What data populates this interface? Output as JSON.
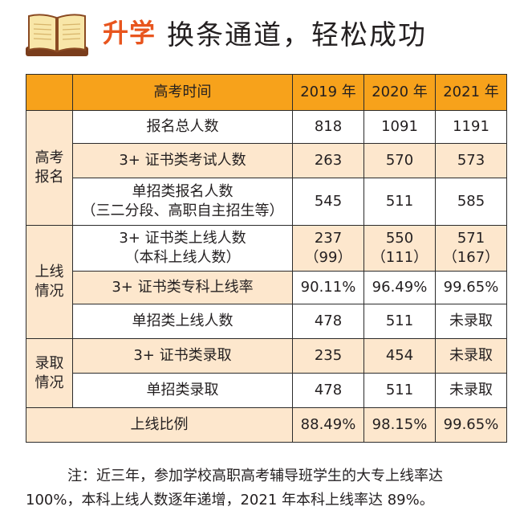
{
  "header": {
    "accent": "升学",
    "title": "换条通道，轻松成功"
  },
  "table": {
    "head": {
      "label": "高考时间",
      "years": [
        "2019 年",
        "2020 年",
        "2021 年"
      ]
    },
    "groups": {
      "g1": {
        "line1": "高考",
        "line2": "报名"
      },
      "g2": {
        "line1": "上线",
        "line2": "情况"
      },
      "g3": {
        "line1": "录取",
        "line2": "情况"
      }
    },
    "rows": [
      {
        "label": "报名总人数",
        "v": [
          "818",
          "1091",
          "1191"
        ]
      },
      {
        "label": "3+ 证书类考试人数",
        "v": [
          "263",
          "570",
          "573"
        ]
      },
      {
        "label1": "单招类报名人数",
        "label2": "（三二分段、高职自主招生等）",
        "v": [
          "545",
          "511",
          "585"
        ]
      },
      {
        "label1": "3+ 证书类上线人数",
        "label2": "（本科上线人数）",
        "v": [
          "237",
          "550",
          "571"
        ],
        "sub": [
          "（99）",
          "（111）",
          "（167）"
        ]
      },
      {
        "label": "3+ 证书类专科上线率",
        "v": [
          "90.11%",
          "96.49%",
          "99.65%"
        ]
      },
      {
        "label": "单招类上线人数",
        "v": [
          "478",
          "511",
          "未录取"
        ]
      },
      {
        "label": "3+ 证书类录取",
        "v": [
          "235",
          "454",
          "未录取"
        ]
      },
      {
        "label": "单招类录取",
        "v": [
          "478",
          "511",
          "未录取"
        ]
      }
    ],
    "footer": {
      "label": "上线比例",
      "v": [
        "88.49%",
        "98.15%",
        "99.65%"
      ]
    }
  },
  "note": {
    "line1": "注：近三年，参加学校高职高考辅导班学生的大专上线率达",
    "line2": "100%，本科上线人数逐年递增，2021 年本科上线率达 89%。"
  },
  "colors": {
    "accent": "#e8551e",
    "header_bg": "#f7a21b",
    "light_bg": "#fde7cd"
  },
  "icons": {
    "header": "open-book-icon"
  }
}
